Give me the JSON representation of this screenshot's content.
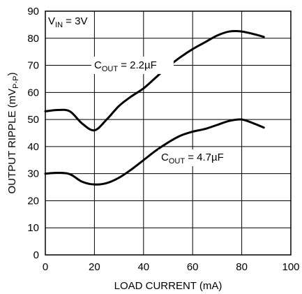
{
  "chart_data": {
    "type": "line",
    "title": "",
    "xlabel": "LOAD CURRENT (mA)",
    "ylabel_main": "OUTPUT RIPPLE (mV",
    "ylabel_sub": "P-P",
    "ylabel_end": ")",
    "xlim": [
      0,
      100
    ],
    "ylim": [
      0,
      90
    ],
    "xticks": [
      0,
      20,
      40,
      60,
      80,
      100
    ],
    "yticks": [
      0,
      10,
      20,
      30,
      40,
      50,
      60,
      70,
      80,
      90
    ],
    "grid": true,
    "condition": {
      "main": "V",
      "sub": "IN",
      "rest": " = 3V"
    },
    "series": [
      {
        "name": "COUT = 2.2µF",
        "label_main": "C",
        "label_sub": "OUT",
        "label_rest": " = 2.2µF",
        "x": [
          0,
          5,
          10,
          15,
          20,
          25,
          30,
          35,
          40,
          45,
          50,
          55,
          60,
          65,
          70,
          75,
          80,
          85,
          89
        ],
        "y": [
          53,
          53.5,
          53,
          48.5,
          46,
          50,
          55,
          58.5,
          61.5,
          65.5,
          69.5,
          73,
          76,
          78.5,
          81,
          82.5,
          82.5,
          81.5,
          80.5
        ]
      },
      {
        "name": "COUT = 4.7µF",
        "label_main": "C",
        "label_sub": "OUT",
        "label_rest": " = 4.7µF",
        "x": [
          0,
          5,
          10,
          15,
          20,
          25,
          30,
          35,
          40,
          45,
          50,
          55,
          60,
          65,
          70,
          75,
          80,
          85,
          89
        ],
        "y": [
          30,
          30.3,
          29.8,
          27,
          26,
          26.5,
          28.5,
          31.5,
          35,
          38.5,
          41.5,
          44,
          45.5,
          46.5,
          48,
          49.5,
          50,
          48.5,
          47
        ]
      }
    ]
  }
}
